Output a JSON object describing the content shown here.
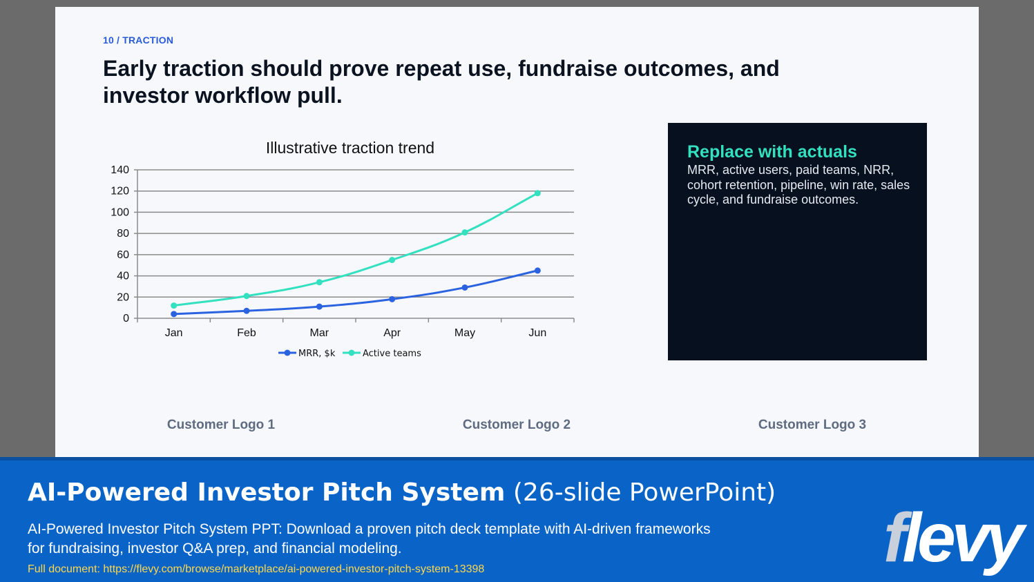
{
  "slide": {
    "section_label": "10 / TRACTION",
    "headline": "Early traction should prove repeat use, fundraise outcomes, and investor workflow pull.",
    "callout": {
      "title": "Replace with actuals",
      "body": "MRR, active users, paid teams, NRR, cohort retention, pipeline, win rate, sales cycle, and fundraise outcomes."
    },
    "logos": [
      "Customer Logo 1",
      "Customer Logo 2",
      "Customer Logo 3"
    ]
  },
  "chart_data": {
    "type": "line",
    "title": "Illustrative traction trend",
    "categories": [
      "Jan",
      "Feb",
      "Mar",
      "Apr",
      "May",
      "Jun"
    ],
    "series": [
      {
        "name": "MRR, $k",
        "values": [
          4,
          7,
          11,
          18,
          29,
          45
        ],
        "color": "#2a62e0"
      },
      {
        "name": "Active teams",
        "values": [
          12,
          21,
          34,
          55,
          81,
          118
        ],
        "color": "#33e0c0"
      }
    ],
    "ylim": [
      0,
      140
    ],
    "yticks": [
      0,
      20,
      40,
      60,
      80,
      100,
      120,
      140
    ],
    "grid": true,
    "legend": "bottom"
  },
  "banner": {
    "title_bold": "AI-Powered Investor Pitch System",
    "title_light": "(26-slide PowerPoint)",
    "description": "AI-Powered Investor Pitch System PPT: Download a proven pitch deck template with AI-driven frameworks for fundraising, investor Q&A prep, and financial modeling.",
    "url": "Full document: https://flevy.com/browse/marketplace/ai-powered-investor-pitch-system-13398",
    "brand": "flevy"
  }
}
